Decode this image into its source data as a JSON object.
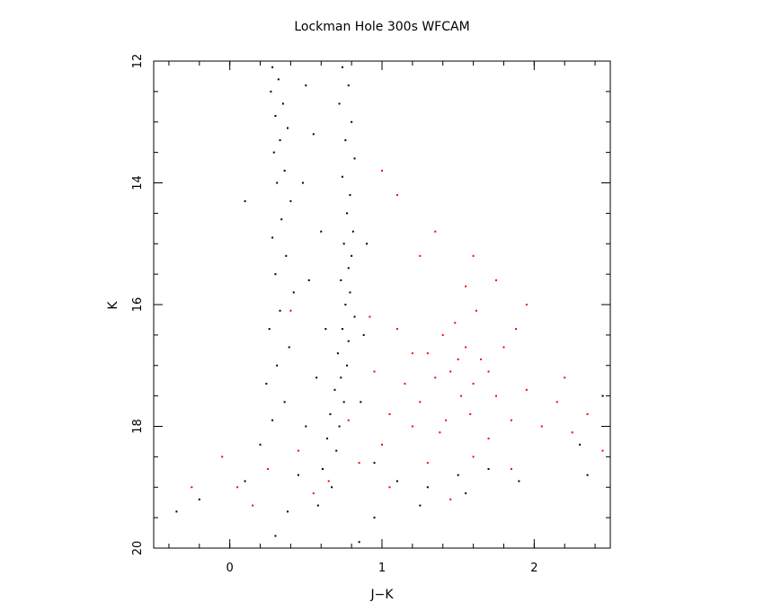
{
  "chart_data": {
    "type": "scatter",
    "title": "Lockman Hole 300s WFCAM",
    "xlabel": "J−K",
    "ylabel": "K",
    "xlim": [
      -0.5,
      2.5
    ],
    "ylim": [
      20,
      12
    ],
    "y_inverted": true,
    "x_ticks": [
      "0",
      "1",
      "2"
    ],
    "x_tick_values": [
      0,
      1,
      2
    ],
    "y_ticks": [
      "12",
      "14",
      "16",
      "18",
      "20"
    ],
    "y_tick_values": [
      12,
      14,
      16,
      18,
      20
    ],
    "grid": false,
    "legend": false,
    "series": [
      {
        "color": "#000000",
        "points": [
          [
            0.28,
            12.1
          ],
          [
            0.32,
            12.3
          ],
          [
            0.27,
            12.5
          ],
          [
            0.35,
            12.7
          ],
          [
            0.3,
            12.9
          ],
          [
            0.38,
            13.1
          ],
          [
            0.33,
            13.3
          ],
          [
            0.29,
            13.5
          ],
          [
            0.36,
            13.8
          ],
          [
            0.31,
            14.0
          ],
          [
            0.4,
            14.3
          ],
          [
            0.34,
            14.6
          ],
          [
            0.28,
            14.9
          ],
          [
            0.37,
            15.2
          ],
          [
            0.3,
            15.5
          ],
          [
            0.42,
            15.8
          ],
          [
            0.33,
            16.1
          ],
          [
            0.26,
            16.4
          ],
          [
            0.39,
            16.7
          ],
          [
            0.31,
            17.0
          ],
          [
            0.24,
            17.3
          ],
          [
            0.36,
            17.6
          ],
          [
            0.28,
            17.9
          ],
          [
            0.2,
            18.3
          ],
          [
            0.74,
            12.1
          ],
          [
            0.78,
            12.4
          ],
          [
            0.72,
            12.7
          ],
          [
            0.8,
            13.0
          ],
          [
            0.76,
            13.3
          ],
          [
            0.82,
            13.6
          ],
          [
            0.74,
            13.9
          ],
          [
            0.79,
            14.2
          ],
          [
            0.77,
            14.5
          ],
          [
            0.81,
            14.8
          ],
          [
            0.75,
            15.0
          ],
          [
            0.8,
            15.2
          ],
          [
            0.78,
            15.4
          ],
          [
            0.73,
            15.6
          ],
          [
            0.79,
            15.8
          ],
          [
            0.76,
            16.0
          ],
          [
            0.82,
            16.2
          ],
          [
            0.74,
            16.4
          ],
          [
            0.78,
            16.6
          ],
          [
            0.71,
            16.8
          ],
          [
            0.77,
            17.0
          ],
          [
            0.73,
            17.2
          ],
          [
            0.69,
            17.4
          ],
          [
            0.75,
            17.6
          ],
          [
            0.66,
            17.8
          ],
          [
            0.72,
            18.0
          ],
          [
            0.64,
            18.2
          ],
          [
            0.7,
            18.4
          ],
          [
            0.61,
            18.7
          ],
          [
            0.67,
            19.0
          ],
          [
            0.58,
            19.3
          ],
          [
            0.5,
            12.4
          ],
          [
            0.55,
            13.2
          ],
          [
            0.48,
            14.0
          ],
          [
            0.6,
            14.8
          ],
          [
            0.52,
            15.6
          ],
          [
            0.63,
            16.4
          ],
          [
            0.57,
            17.2
          ],
          [
            0.5,
            18.0
          ],
          [
            0.45,
            18.8
          ],
          [
            0.38,
            19.4
          ],
          [
            0.3,
            19.8
          ],
          [
            0.9,
            15.0
          ],
          [
            0.88,
            16.5
          ],
          [
            0.86,
            17.6
          ],
          [
            0.95,
            18.6
          ],
          [
            1.1,
            18.9
          ],
          [
            1.3,
            19.0
          ],
          [
            1.5,
            18.8
          ],
          [
            1.7,
            18.7
          ],
          [
            1.55,
            19.1
          ],
          [
            1.25,
            19.3
          ],
          [
            0.95,
            19.5
          ],
          [
            0.1,
            18.9
          ],
          [
            -0.35,
            19.4
          ],
          [
            -0.2,
            19.2
          ],
          [
            0.1,
            14.3
          ],
          [
            0.85,
            19.9
          ],
          [
            2.3,
            18.3
          ],
          [
            2.45,
            17.5
          ],
          [
            2.35,
            18.8
          ],
          [
            1.9,
            18.9
          ]
        ]
      },
      {
        "color": "#ff0000",
        "points": [
          [
            1.5,
            16.9
          ],
          [
            1.45,
            17.1
          ],
          [
            1.55,
            16.7
          ],
          [
            1.6,
            17.3
          ],
          [
            1.4,
            16.5
          ],
          [
            1.52,
            17.5
          ],
          [
            1.48,
            16.3
          ],
          [
            1.65,
            16.9
          ],
          [
            1.35,
            17.2
          ],
          [
            1.58,
            17.8
          ],
          [
            1.42,
            17.9
          ],
          [
            1.7,
            17.1
          ],
          [
            1.3,
            16.8
          ],
          [
            1.62,
            16.1
          ],
          [
            1.55,
            15.7
          ],
          [
            1.25,
            17.6
          ],
          [
            1.75,
            17.5
          ],
          [
            1.38,
            18.1
          ],
          [
            1.8,
            16.7
          ],
          [
            1.2,
            18.0
          ],
          [
            1.85,
            17.9
          ],
          [
            1.15,
            17.3
          ],
          [
            1.05,
            17.8
          ],
          [
            1.95,
            17.4
          ],
          [
            1.1,
            16.4
          ],
          [
            1.0,
            18.3
          ],
          [
            2.05,
            18.0
          ],
          [
            0.95,
            17.1
          ],
          [
            1.88,
            16.4
          ],
          [
            1.25,
            15.2
          ],
          [
            1.35,
            14.8
          ],
          [
            1.1,
            14.2
          ],
          [
            1.0,
            13.8
          ],
          [
            1.6,
            15.2
          ],
          [
            1.75,
            15.6
          ],
          [
            1.3,
            18.6
          ],
          [
            1.6,
            18.5
          ],
          [
            1.85,
            18.7
          ],
          [
            2.15,
            17.6
          ],
          [
            2.25,
            18.1
          ],
          [
            2.45,
            18.4
          ],
          [
            1.05,
            19.0
          ],
          [
            0.85,
            18.6
          ],
          [
            0.65,
            18.9
          ],
          [
            0.45,
            18.4
          ],
          [
            0.25,
            18.7
          ],
          [
            0.05,
            19.0
          ],
          [
            -0.05,
            18.5
          ],
          [
            -0.25,
            19.0
          ],
          [
            0.15,
            19.3
          ],
          [
            0.55,
            19.1
          ],
          [
            0.4,
            16.1
          ],
          [
            2.2,
            17.2
          ],
          [
            2.35,
            17.8
          ],
          [
            1.95,
            16.0
          ],
          [
            1.45,
            19.2
          ],
          [
            0.78,
            17.9
          ],
          [
            0.92,
            16.2
          ],
          [
            1.7,
            18.2
          ],
          [
            1.2,
            16.8
          ]
        ]
      }
    ]
  }
}
